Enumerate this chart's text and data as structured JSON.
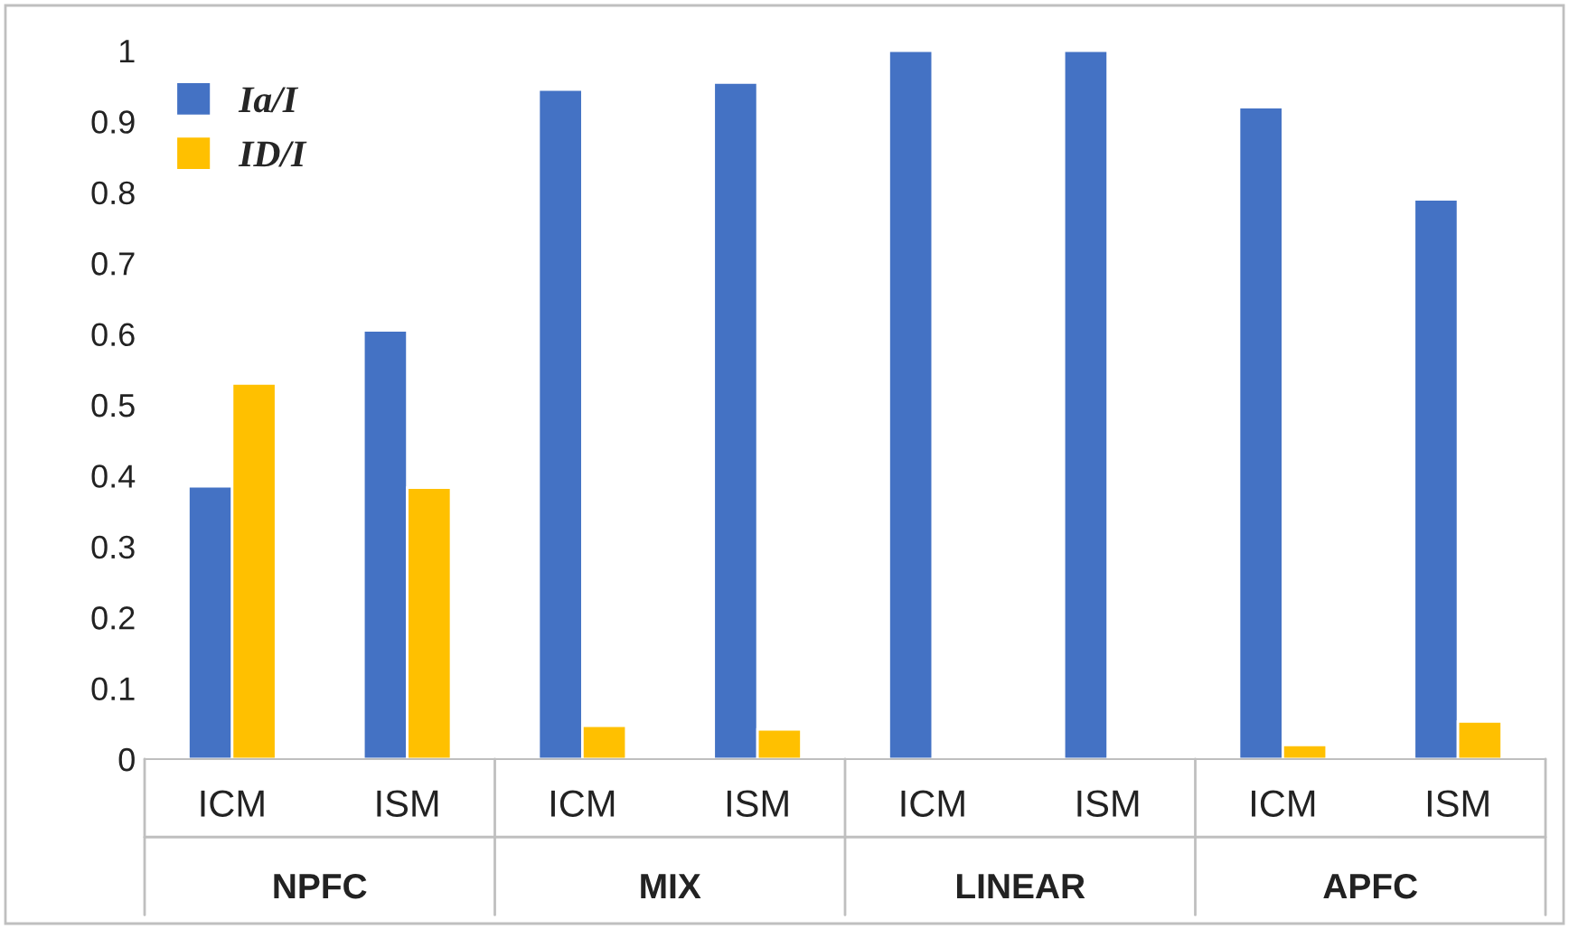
{
  "chart_data": {
    "type": "bar",
    "categories": [
      "ICM",
      "ISM",
      "ICM",
      "ISM",
      "ICM",
      "ISM",
      "ICM",
      "ISM"
    ],
    "series": [
      {
        "name": "Ia/I",
        "color": "#4472c4",
        "values": [
          0.385,
          0.605,
          0.945,
          0.955,
          1.0,
          1.0,
          0.92,
          0.79
        ]
      },
      {
        "name": "ID/I",
        "color": "#ffc000",
        "values": [
          0.53,
          0.383,
          0.047,
          0.042,
          null,
          null,
          0.02,
          0.053
        ]
      }
    ],
    "annotations": [
      "NPFC",
      "MIX",
      "LINEAR",
      "APFC"
    ],
    "ylim": [
      0,
      1
    ],
    "yticks": [
      0,
      0.1,
      0.2,
      0.3,
      0.4,
      0.5,
      0.6,
      0.7,
      0.8,
      0.9,
      1
    ],
    "grid": false,
    "legend": "top left"
  }
}
